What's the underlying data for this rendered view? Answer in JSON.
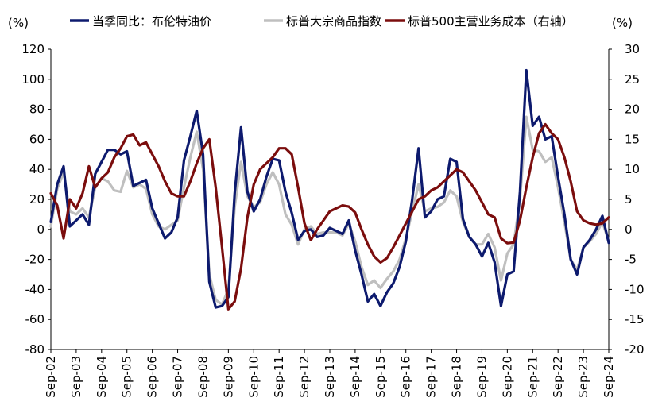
{
  "chart_data": {
    "type": "line",
    "title": "",
    "left_unit": "(%)",
    "right_unit": "(%)",
    "left_axis": {
      "min": -80,
      "max": 120,
      "step": 20
    },
    "right_axis": {
      "min": -20,
      "max": 30,
      "step": 5
    },
    "x_start": 2002.67,
    "x_end": 2024.67,
    "x_ticks": [
      "Sep-02",
      "Sep-03",
      "Sep-04",
      "Sep-05",
      "Sep-06",
      "Sep-07",
      "Sep-08",
      "Sep-09",
      "Sep-10",
      "Sep-11",
      "Sep-12",
      "Sep-13",
      "Sep-14",
      "Sep-15",
      "Sep-16",
      "Sep-17",
      "Sep-18",
      "Sep-19",
      "Sep-20",
      "Sep-21",
      "Sep-22",
      "Sep-23",
      "Sep-24"
    ],
    "legend_placement": "top",
    "series": [
      {
        "name": "当季同比：布伦特油价",
        "axis": "left",
        "color": "#0d1a6e",
        "points": [
          [
            2002.67,
            5
          ],
          [
            2002.92,
            30
          ],
          [
            2003.17,
            42
          ],
          [
            2003.42,
            2
          ],
          [
            2003.67,
            6
          ],
          [
            2003.92,
            10
          ],
          [
            2004.17,
            3
          ],
          [
            2004.42,
            37
          ],
          [
            2004.67,
            45
          ],
          [
            2004.92,
            53
          ],
          [
            2005.17,
            53
          ],
          [
            2005.42,
            50
          ],
          [
            2005.67,
            52
          ],
          [
            2005.92,
            29
          ],
          [
            2006.17,
            31
          ],
          [
            2006.42,
            33
          ],
          [
            2006.67,
            14
          ],
          [
            2006.92,
            4
          ],
          [
            2007.17,
            -6
          ],
          [
            2007.42,
            -2
          ],
          [
            2007.67,
            8
          ],
          [
            2007.92,
            46
          ],
          [
            2008.17,
            62
          ],
          [
            2008.42,
            79
          ],
          [
            2008.67,
            50
          ],
          [
            2008.92,
            -35
          ],
          [
            2009.17,
            -52
          ],
          [
            2009.42,
            -51
          ],
          [
            2009.67,
            -45
          ],
          [
            2009.92,
            24
          ],
          [
            2010.17,
            68
          ],
          [
            2010.42,
            25
          ],
          [
            2010.67,
            12
          ],
          [
            2010.92,
            20
          ],
          [
            2011.17,
            35
          ],
          [
            2011.42,
            47
          ],
          [
            2011.67,
            46
          ],
          [
            2011.92,
            25
          ],
          [
            2012.17,
            11
          ],
          [
            2012.42,
            -7
          ],
          [
            2012.67,
            -1
          ],
          [
            2012.92,
            0
          ],
          [
            2013.17,
            -5
          ],
          [
            2013.42,
            -4
          ],
          [
            2013.67,
            1
          ],
          [
            2013.92,
            -1
          ],
          [
            2014.17,
            -3
          ],
          [
            2014.42,
            6
          ],
          [
            2014.67,
            -14
          ],
          [
            2014.92,
            -30
          ],
          [
            2015.17,
            -48
          ],
          [
            2015.42,
            -43
          ],
          [
            2015.67,
            -51
          ],
          [
            2015.92,
            -42
          ],
          [
            2016.17,
            -36
          ],
          [
            2016.42,
            -25
          ],
          [
            2016.67,
            -8
          ],
          [
            2016.92,
            20
          ],
          [
            2017.17,
            54
          ],
          [
            2017.42,
            8
          ],
          [
            2017.67,
            12
          ],
          [
            2017.92,
            20
          ],
          [
            2018.17,
            22
          ],
          [
            2018.42,
            47
          ],
          [
            2018.67,
            45
          ],
          [
            2018.92,
            7
          ],
          [
            2019.17,
            -5
          ],
          [
            2019.42,
            -10
          ],
          [
            2019.67,
            -18
          ],
          [
            2019.92,
            -9
          ],
          [
            2020.17,
            -22
          ],
          [
            2020.42,
            -51
          ],
          [
            2020.67,
            -30
          ],
          [
            2020.92,
            -28
          ],
          [
            2021.17,
            25
          ],
          [
            2021.42,
            106
          ],
          [
            2021.67,
            69
          ],
          [
            2021.92,
            75
          ],
          [
            2022.17,
            60
          ],
          [
            2022.42,
            62
          ],
          [
            2022.67,
            35
          ],
          [
            2022.92,
            10
          ],
          [
            2023.17,
            -20
          ],
          [
            2023.42,
            -30
          ],
          [
            2023.67,
            -12
          ],
          [
            2023.92,
            -7
          ],
          [
            2024.17,
            0
          ],
          [
            2024.42,
            9
          ],
          [
            2024.67,
            -9
          ]
        ]
      },
      {
        "name": "标普大宗商品指数",
        "axis": "left",
        "color": "#bfbfbf",
        "points": [
          [
            2002.67,
            2
          ],
          [
            2002.92,
            27
          ],
          [
            2003.17,
            38
          ],
          [
            2003.42,
            12
          ],
          [
            2003.67,
            10
          ],
          [
            2003.92,
            14
          ],
          [
            2004.17,
            8
          ],
          [
            2004.42,
            28
          ],
          [
            2004.67,
            34
          ],
          [
            2004.92,
            32
          ],
          [
            2005.17,
            26
          ],
          [
            2005.42,
            25
          ],
          [
            2005.67,
            39
          ],
          [
            2005.92,
            28
          ],
          [
            2006.17,
            30
          ],
          [
            2006.42,
            27
          ],
          [
            2006.67,
            10
          ],
          [
            2006.92,
            2
          ],
          [
            2007.17,
            0
          ],
          [
            2007.42,
            3
          ],
          [
            2007.67,
            6
          ],
          [
            2007.92,
            28
          ],
          [
            2008.17,
            48
          ],
          [
            2008.42,
            65
          ],
          [
            2008.67,
            40
          ],
          [
            2008.92,
            -30
          ],
          [
            2009.17,
            -47
          ],
          [
            2009.42,
            -50
          ],
          [
            2009.67,
            -40
          ],
          [
            2009.92,
            15
          ],
          [
            2010.17,
            45
          ],
          [
            2010.42,
            22
          ],
          [
            2010.67,
            15
          ],
          [
            2010.92,
            18
          ],
          [
            2011.17,
            30
          ],
          [
            2011.42,
            38
          ],
          [
            2011.67,
            30
          ],
          [
            2011.92,
            10
          ],
          [
            2012.17,
            3
          ],
          [
            2012.42,
            -10
          ],
          [
            2012.67,
            0
          ],
          [
            2012.92,
            2
          ],
          [
            2013.17,
            -3
          ],
          [
            2013.42,
            -2
          ],
          [
            2013.67,
            -2
          ],
          [
            2013.92,
            -2
          ],
          [
            2014.17,
            -4
          ],
          [
            2014.42,
            4
          ],
          [
            2014.67,
            -8
          ],
          [
            2014.92,
            -25
          ],
          [
            2015.17,
            -37
          ],
          [
            2015.42,
            -34
          ],
          [
            2015.67,
            -39
          ],
          [
            2015.92,
            -33
          ],
          [
            2016.17,
            -28
          ],
          [
            2016.42,
            -20
          ],
          [
            2016.67,
            -6
          ],
          [
            2016.92,
            12
          ],
          [
            2017.17,
            30
          ],
          [
            2017.42,
            12
          ],
          [
            2017.67,
            14
          ],
          [
            2017.92,
            15
          ],
          [
            2018.17,
            18
          ],
          [
            2018.42,
            26
          ],
          [
            2018.67,
            22
          ],
          [
            2018.92,
            5
          ],
          [
            2019.17,
            -5
          ],
          [
            2019.42,
            -10
          ],
          [
            2019.67,
            -10
          ],
          [
            2019.92,
            -3
          ],
          [
            2020.17,
            -12
          ],
          [
            2020.42,
            -34
          ],
          [
            2020.67,
            -16
          ],
          [
            2020.92,
            -10
          ],
          [
            2021.17,
            20
          ],
          [
            2021.42,
            75
          ],
          [
            2021.67,
            53
          ],
          [
            2021.92,
            52
          ],
          [
            2022.17,
            45
          ],
          [
            2022.42,
            48
          ],
          [
            2022.67,
            28
          ],
          [
            2022.92,
            5
          ],
          [
            2023.17,
            -20
          ],
          [
            2023.42,
            -27
          ],
          [
            2023.67,
            -12
          ],
          [
            2023.92,
            -8
          ],
          [
            2024.17,
            -3
          ],
          [
            2024.42,
            5
          ],
          [
            2024.67,
            -8
          ]
        ]
      },
      {
        "name": "标普500主营业务成本（右轴）",
        "axis": "right",
        "color": "#7b0d0d",
        "points": [
          [
            2002.67,
            6
          ],
          [
            2002.92,
            4
          ],
          [
            2003.17,
            -1.5
          ],
          [
            2003.42,
            5
          ],
          [
            2003.67,
            3.5
          ],
          [
            2003.92,
            6
          ],
          [
            2004.17,
            10.5
          ],
          [
            2004.42,
            7
          ],
          [
            2004.67,
            8.5
          ],
          [
            2004.92,
            9.5
          ],
          [
            2005.17,
            12
          ],
          [
            2005.42,
            13.5
          ],
          [
            2005.67,
            15.5
          ],
          [
            2005.92,
            15.8
          ],
          [
            2006.17,
            14
          ],
          [
            2006.42,
            14.5
          ],
          [
            2006.67,
            12.5
          ],
          [
            2006.92,
            10.5
          ],
          [
            2007.17,
            8
          ],
          [
            2007.42,
            6
          ],
          [
            2007.67,
            5.5
          ],
          [
            2007.92,
            5.5
          ],
          [
            2008.17,
            8
          ],
          [
            2008.42,
            11
          ],
          [
            2008.67,
            13.5
          ],
          [
            2008.92,
            15
          ],
          [
            2009.17,
            7
          ],
          [
            2009.42,
            -3
          ],
          [
            2009.67,
            -13.3
          ],
          [
            2009.92,
            -12
          ],
          [
            2010.17,
            -6.5
          ],
          [
            2010.42,
            2
          ],
          [
            2010.67,
            7.5
          ],
          [
            2010.92,
            10
          ],
          [
            2011.17,
            11
          ],
          [
            2011.42,
            12
          ],
          [
            2011.67,
            13.5
          ],
          [
            2011.92,
            13.5
          ],
          [
            2012.17,
            12.5
          ],
          [
            2012.42,
            7
          ],
          [
            2012.67,
            1
          ],
          [
            2012.92,
            -1.8
          ],
          [
            2013.17,
            0
          ],
          [
            2013.42,
            1.5
          ],
          [
            2013.67,
            3
          ],
          [
            2013.92,
            3.5
          ],
          [
            2014.17,
            4
          ],
          [
            2014.42,
            3.8
          ],
          [
            2014.67,
            2.8
          ],
          [
            2014.92,
            0
          ],
          [
            2015.17,
            -2.5
          ],
          [
            2015.42,
            -4.5
          ],
          [
            2015.67,
            -5.5
          ],
          [
            2015.92,
            -4.8
          ],
          [
            2016.17,
            -3
          ],
          [
            2016.42,
            -1
          ],
          [
            2016.67,
            1
          ],
          [
            2016.92,
            3
          ],
          [
            2017.17,
            5
          ],
          [
            2017.42,
            5.5
          ],
          [
            2017.67,
            6.5
          ],
          [
            2017.92,
            7
          ],
          [
            2018.17,
            8
          ],
          [
            2018.42,
            9
          ],
          [
            2018.67,
            10
          ],
          [
            2018.92,
            9.5
          ],
          [
            2019.17,
            8
          ],
          [
            2019.42,
            6.5
          ],
          [
            2019.67,
            4.5
          ],
          [
            2019.92,
            2.5
          ],
          [
            2020.17,
            2
          ],
          [
            2020.42,
            -1.5
          ],
          [
            2020.67,
            -2.3
          ],
          [
            2020.92,
            -2.2
          ],
          [
            2021.17,
            1.5
          ],
          [
            2021.42,
            7
          ],
          [
            2021.67,
            12
          ],
          [
            2021.92,
            16
          ],
          [
            2022.17,
            17.5
          ],
          [
            2022.42,
            16
          ],
          [
            2022.67,
            15
          ],
          [
            2022.92,
            12
          ],
          [
            2023.17,
            8
          ],
          [
            2023.42,
            3
          ],
          [
            2023.67,
            1.5
          ],
          [
            2023.92,
            1
          ],
          [
            2024.17,
            0.8
          ],
          [
            2024.42,
            1
          ],
          [
            2024.67,
            2
          ]
        ]
      }
    ]
  }
}
